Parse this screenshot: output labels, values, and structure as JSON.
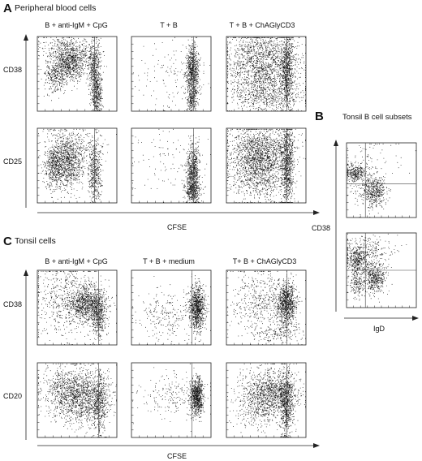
{
  "colors": {
    "dot": "#111111",
    "frame": "#222222",
    "gate": "#444444",
    "background": "#ffffff"
  },
  "panelA": {
    "letter": "A",
    "title": "Peripheral blood cells",
    "columns": [
      "B + anti-IgM + CpG",
      "T + B",
      "T + B + ChAGlyCD3"
    ],
    "rows": [
      "CD38",
      "CD25"
    ],
    "xlabel": "CFSE"
  },
  "panelB": {
    "letter": "B",
    "title": "Tonsil B cell subsets",
    "ylabel": "CD38",
    "xlabel": "IgD"
  },
  "panelC": {
    "letter": "C",
    "title": "Tonsil cells",
    "columns": [
      "B + anti-IgM + CpG",
      "T + B + medium",
      "T+ B + ChAGlyCD3"
    ],
    "rows": [
      "CD38",
      "CD20"
    ],
    "xlabel": "CFSE"
  }
}
